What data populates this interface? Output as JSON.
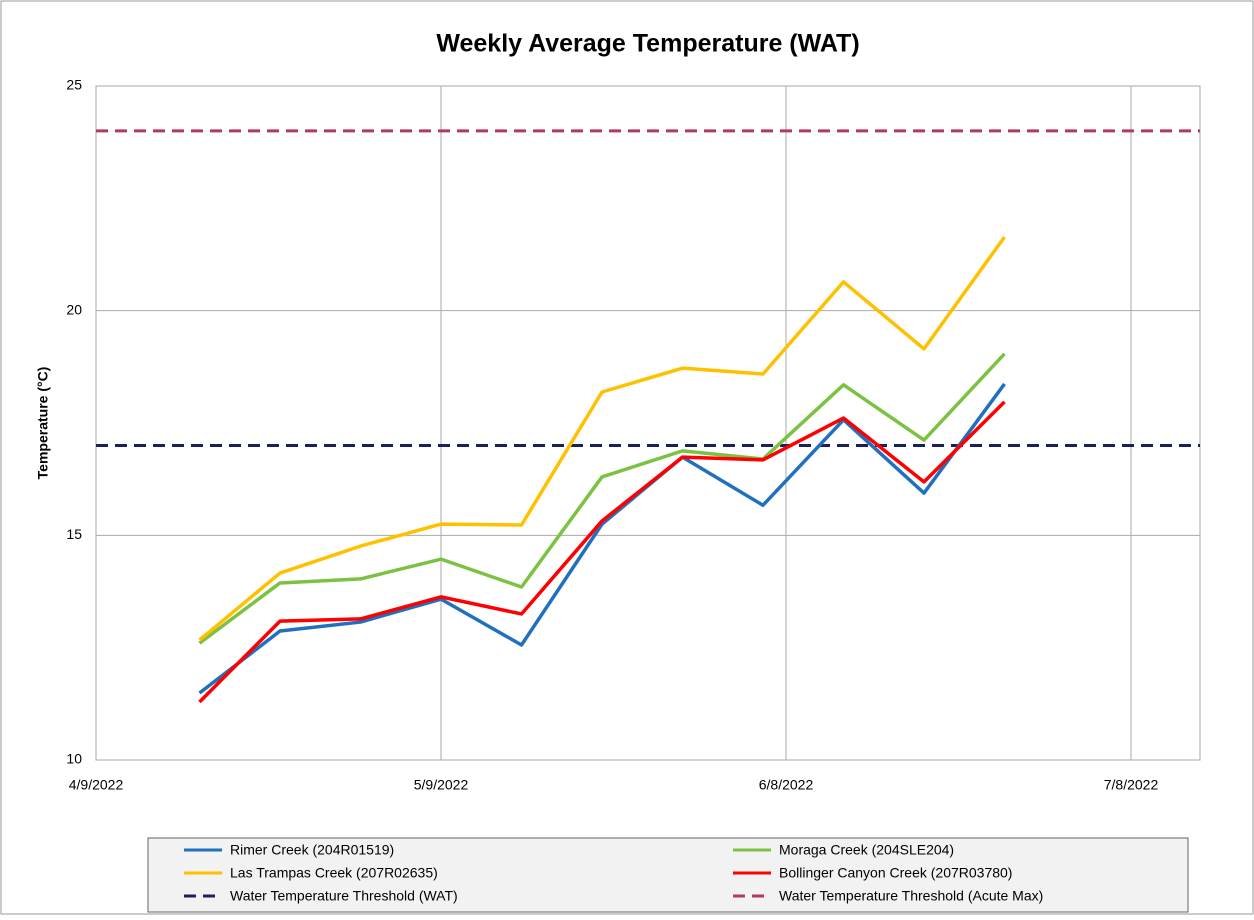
{
  "chart_data": {
    "type": "line",
    "title": "Weekly Average Temperature (WAT)",
    "y_label": "Temperature (°C)",
    "x": [
      "2022-04-18",
      "2022-04-25",
      "2022-05-02",
      "2022-05-09",
      "2022-05-16",
      "2022-05-23",
      "2022-05-30",
      "2022-06-06",
      "2022-06-13",
      "2022-06-20",
      "2022-06-27"
    ],
    "xlim": [
      "2022-04-09",
      "2022-07-14"
    ],
    "xticks": [
      {
        "value": "2022-04-09",
        "label": "4/9/2022"
      },
      {
        "value": "2022-05-09",
        "label": "5/9/2022"
      },
      {
        "value": "2022-06-08",
        "label": "6/8/2022"
      },
      {
        "value": "2022-07-08",
        "label": "7/8/2022"
      }
    ],
    "ylim": [
      10,
      25
    ],
    "yticks": [
      10,
      15,
      20,
      25
    ],
    "grid": true,
    "series": [
      {
        "name": "Rimer Creek (204R01519)",
        "color": "#2070c0",
        "values": [
          11.49,
          12.87,
          13.07,
          13.58,
          12.56,
          15.25,
          16.74,
          15.67,
          17.57,
          15.94,
          18.37
        ]
      },
      {
        "name": "Moraga Creek (204SLE204)",
        "color": "#7cc242",
        "values": [
          12.6,
          13.94,
          14.03,
          14.47,
          13.85,
          16.3,
          16.88,
          16.7,
          18.35,
          17.12,
          19.04
        ]
      },
      {
        "name": "Las Trampas Creek (207R02635)",
        "color": "#ffc000",
        "values": [
          12.67,
          14.16,
          14.76,
          15.25,
          15.23,
          18.19,
          18.72,
          18.59,
          20.64,
          19.15,
          21.64
        ]
      },
      {
        "name": "Bollinger Canyon Creek (207R03780)",
        "color": "#ff0000",
        "values": [
          11.29,
          13.09,
          13.14,
          13.63,
          13.25,
          15.32,
          16.74,
          16.68,
          17.61,
          16.19,
          17.97
        ]
      }
    ],
    "thresholds": [
      {
        "name": "Water Temperature Threshold (WAT)",
        "color": "#1a1f5e",
        "value": 17
      },
      {
        "name": "Water Temperature Threshold (Acute Max)",
        "color": "#b23a5c",
        "value": 24
      }
    ]
  }
}
